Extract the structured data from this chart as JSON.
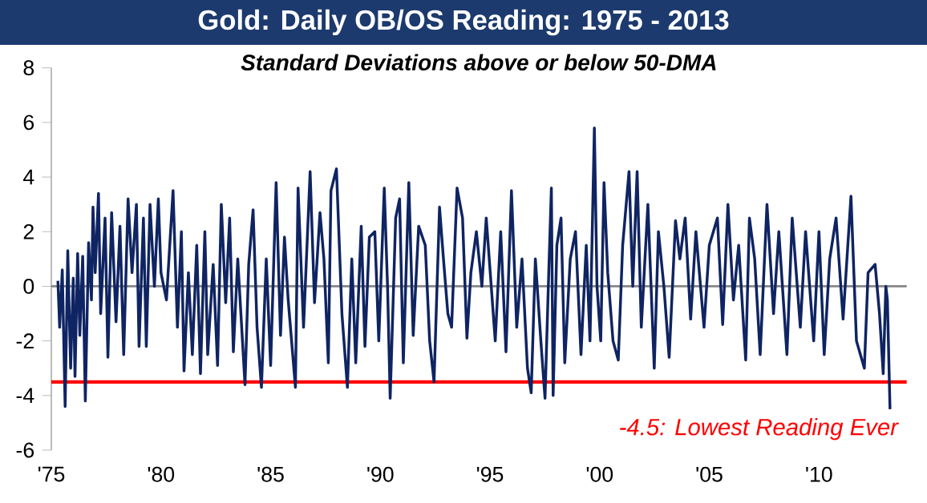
{
  "chart_data": {
    "type": "line",
    "title": "Gold: Daily OB/OS Reading: 1975 - 2013",
    "subtitle": "Standard Deviations above or below 50-DMA",
    "x": [
      1975.3,
      1975.38,
      1975.5,
      1975.63,
      1975.75,
      1975.88,
      1976.0,
      1976.08,
      1976.2,
      1976.3,
      1976.43,
      1976.55,
      1976.7,
      1976.83,
      1976.9,
      1977.0,
      1977.15,
      1977.25,
      1977.45,
      1977.58,
      1977.75,
      1977.95,
      1978.13,
      1978.3,
      1978.5,
      1978.68,
      1978.88,
      1979.0,
      1979.2,
      1979.33,
      1979.5,
      1979.7,
      1979.88,
      1980.0,
      1980.25,
      1980.55,
      1980.75,
      1980.93,
      1981.05,
      1981.25,
      1981.43,
      1981.63,
      1981.8,
      1982.0,
      1982.13,
      1982.38,
      1982.58,
      1982.75,
      1982.95,
      1983.13,
      1983.3,
      1983.5,
      1983.83,
      1984.0,
      1984.2,
      1984.38,
      1984.58,
      1984.8,
      1985.0,
      1985.25,
      1985.45,
      1985.63,
      1985.8,
      1986.13,
      1986.25,
      1986.5,
      1986.8,
      1987.0,
      1987.25,
      1987.43,
      1987.63,
      1987.75,
      1988.0,
      1988.25,
      1988.5,
      1988.7,
      1988.88,
      1989.13,
      1989.3,
      1989.5,
      1989.75,
      1989.93,
      1990.18,
      1990.33,
      1990.45,
      1990.7,
      1990.88,
      1991.05,
      1991.3,
      1991.5,
      1991.75,
      1992.05,
      1992.25,
      1992.45,
      1992.7,
      1992.88,
      1993.08,
      1993.25,
      1993.5,
      1993.75,
      1993.95,
      1994.13,
      1994.38,
      1994.63,
      1994.83,
      1995.24,
      1995.49,
      1995.73,
      1995.98,
      1996.22,
      1996.46,
      1996.71,
      1996.88,
      1997.07,
      1997.32,
      1997.51,
      1997.68,
      1997.8,
      1997.88,
      1998.05,
      1998.24,
      1998.41,
      1998.66,
      1998.9,
      1999.15,
      1999.39,
      1999.56,
      1999.76,
      1999.88,
      2000.05,
      2000.2,
      2000.37,
      2000.61,
      2000.85,
      2001.05,
      2001.34,
      2001.51,
      2001.71,
      2001.9,
      2002.2,
      2002.49,
      2002.68,
      2002.93,
      2003.17,
      2003.46,
      2003.66,
      2003.9,
      2004.15,
      2004.39,
      2004.76,
      2005.0,
      2005.37,
      2005.61,
      2005.85,
      2006.1,
      2006.34,
      2006.66,
      2006.83,
      2007.07,
      2007.32,
      2007.63,
      2007.93,
      2008.17,
      2008.54,
      2008.78,
      2009.15,
      2009.39,
      2009.76,
      2010.0,
      2010.24,
      2010.49,
      2010.78,
      2011.1,
      2011.46,
      2011.71,
      2012.07,
      2012.24,
      2012.56,
      2012.76,
      2012.93,
      2013.05,
      2013.12,
      2013.24
    ],
    "series": [
      {
        "color": "#0f2462",
        "values": [
          0.2,
          -1.5,
          0.6,
          -4.4,
          1.3,
          -3.0,
          0.3,
          -3.3,
          1.2,
          -1.8,
          1.1,
          -4.2,
          1.6,
          -0.5,
          2.9,
          0.5,
          3.4,
          -1.0,
          2.5,
          -2.6,
          2.7,
          -1.3,
          2.2,
          -2.5,
          3.2,
          0.5,
          3.0,
          -2.2,
          2.5,
          -2.2,
          3.0,
          0.0,
          3.2,
          0.5,
          -0.5,
          3.5,
          -1.5,
          2.0,
          -3.1,
          0.5,
          -2.5,
          1.5,
          -3.2,
          2.0,
          -2.5,
          0.8,
          -2.9,
          3.0,
          -0.6,
          2.5,
          -2.4,
          1.0,
          -3.6,
          0.8,
          2.8,
          -1.5,
          -3.7,
          1.0,
          -2.9,
          3.8,
          -1.8,
          1.8,
          -0.5,
          -3.7,
          3.6,
          -1.5,
          4.2,
          -0.6,
          2.7,
          1.0,
          -2.8,
          3.5,
          4.3,
          -1.0,
          -3.7,
          1.0,
          -2.8,
          2.2,
          -2.2,
          1.8,
          2.0,
          -2.0,
          3.6,
          0.0,
          -4.1,
          2.5,
          3.2,
          -2.8,
          3.8,
          -1.8,
          2.2,
          1.5,
          -2.0,
          -3.5,
          2.9,
          1.0,
          -1.0,
          -1.5,
          3.6,
          2.5,
          -1.9,
          0.5,
          2.0,
          0.0,
          2.5,
          -2.0,
          2.0,
          -2.4,
          3.5,
          -1.5,
          1.0,
          -3.0,
          -3.9,
          1.0,
          -2.0,
          -4.1,
          0.5,
          3.6,
          -4.0,
          1.5,
          2.5,
          -2.8,
          1.0,
          2.0,
          -2.5,
          1.5,
          -2.0,
          5.8,
          0.0,
          -2.0,
          3.8,
          0.5,
          -2.0,
          -2.7,
          1.5,
          4.2,
          0.0,
          4.2,
          -1.5,
          3.0,
          -3.0,
          2.0,
          0.0,
          -2.6,
          2.4,
          1.0,
          2.5,
          -1.2,
          2.0,
          -1.5,
          1.5,
          2.5,
          -1.4,
          3.0,
          -0.5,
          1.5,
          -2.7,
          2.5,
          1.0,
          -2.5,
          3.0,
          -1.0,
          2.0,
          -2.5,
          2.5,
          -1.5,
          2.0,
          -2.0,
          2.0,
          -2.5,
          1.0,
          2.5,
          -1.2,
          3.3,
          -2.0,
          -3.0,
          0.5,
          0.8,
          -1.0,
          -3.2,
          0.0,
          -0.5,
          -4.5
        ]
      }
    ],
    "xlim": [
      1975,
      2014
    ],
    "xticks": [
      {
        "value": 1975,
        "label": "'75"
      },
      {
        "value": 1980,
        "label": "'80"
      },
      {
        "value": 1985,
        "label": "'85"
      },
      {
        "value": 1990,
        "label": "'90"
      },
      {
        "value": 1995,
        "label": "'95"
      },
      {
        "value": 2000,
        "label": "'00"
      },
      {
        "value": 2005,
        "label": "'05"
      },
      {
        "value": 2010,
        "label": "'10"
      }
    ],
    "ylim": [
      -6,
      8
    ],
    "yticks": [
      -6,
      -4,
      -2,
      0,
      2,
      4,
      6,
      8
    ],
    "ref_lines": [
      {
        "axis": "y",
        "value": 0,
        "color": "#868686"
      },
      {
        "axis": "y",
        "value": -3.5,
        "color": "#ff0000"
      }
    ],
    "annotations": [
      {
        "text": "-4.5: Lowest Reading Ever",
        "x": 2013.24,
        "y": -4.5
      }
    ]
  }
}
